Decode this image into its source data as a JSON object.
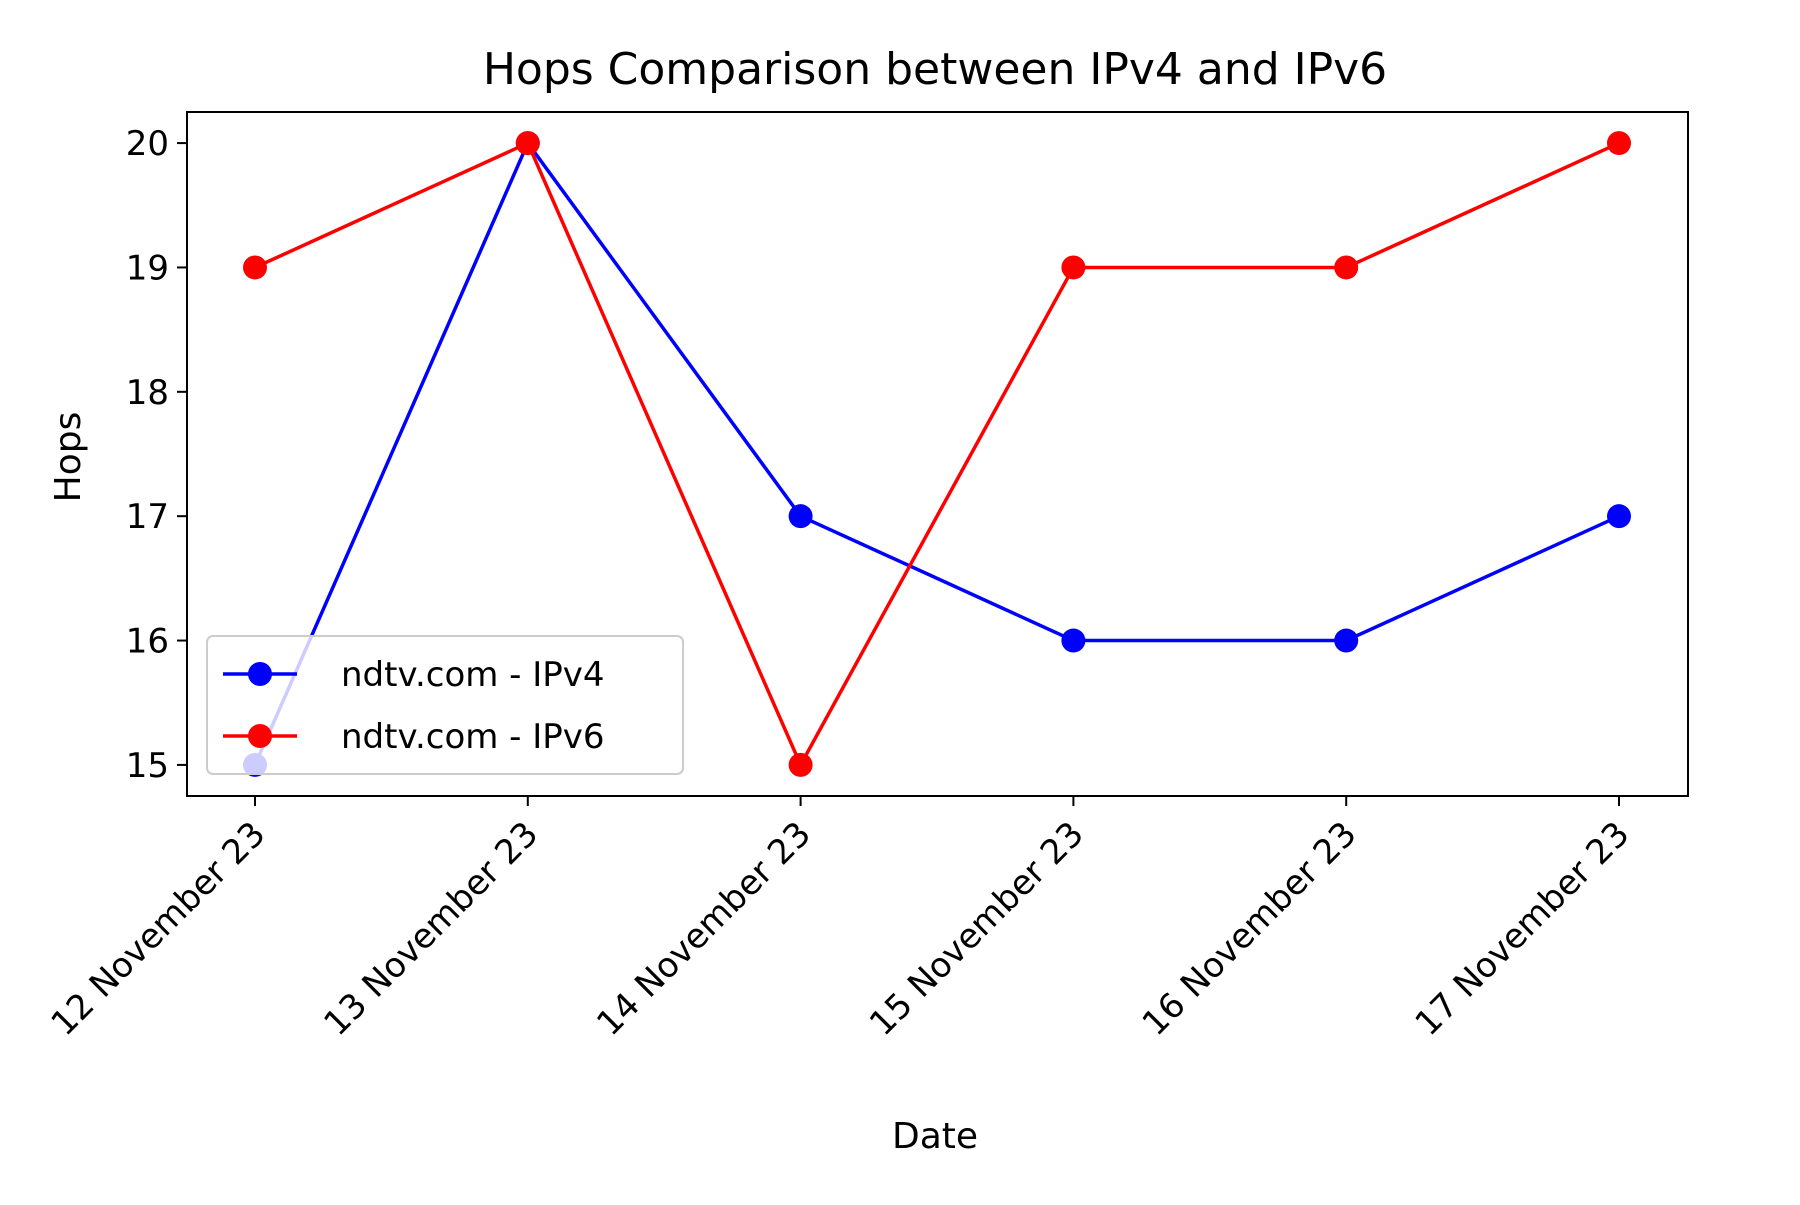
{
  "chart_data": {
    "type": "line",
    "title": "Hops Comparison between IPv4 and IPv6",
    "xlabel": "Date",
    "ylabel": "Hops",
    "categories": [
      "12 November 23",
      "13 November 23",
      "14 November 23",
      "15 November 23",
      "16 November 23",
      "17 November 23"
    ],
    "series": [
      {
        "name": "ndtv.com - IPv4",
        "color": "#0000ff",
        "values": [
          15,
          20,
          17,
          16,
          16,
          17
        ]
      },
      {
        "name": "ndtv.com - IPv6",
        "color": "#ff0000",
        "values": [
          19,
          20,
          15,
          19,
          19,
          20
        ]
      }
    ],
    "ylim": [
      14.75,
      20.25
    ],
    "yticks": [
      15,
      16,
      17,
      18,
      19,
      20
    ],
    "grid": false,
    "legend_position": "lower-left",
    "marker": "circle"
  }
}
